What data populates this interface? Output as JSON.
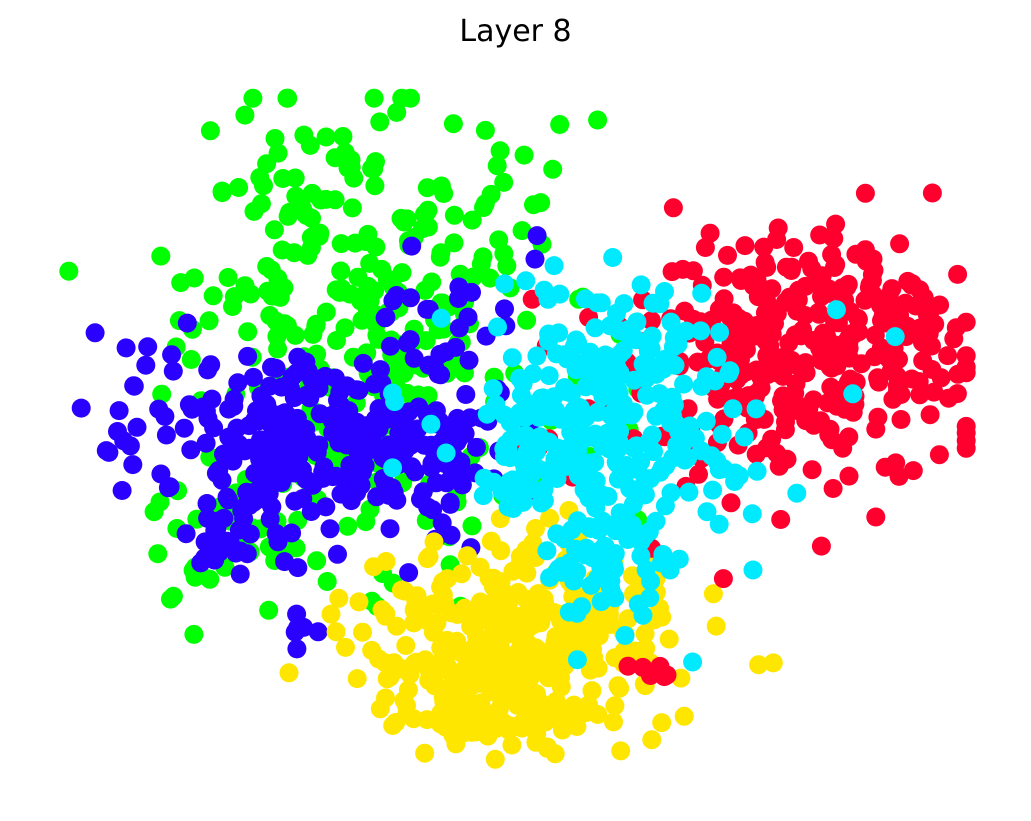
{
  "chart_data": {
    "type": "scatter",
    "title": "Layer 8",
    "xlabel": "",
    "ylabel": "",
    "axes_visible": false,
    "grid": false,
    "legend": "none",
    "xlim": [
      -5.2,
      5.2
    ],
    "ylim": [
      -4.2,
      4.2
    ],
    "series": [
      {
        "color": "#00ff00",
        "clusters": [
          {
            "cx": -1.7,
            "cy": 1.2,
            "sx": 1.05,
            "sy": 1.45,
            "n": 330
          },
          {
            "cx": -3.4,
            "cy": -1.4,
            "sx": 0.45,
            "sy": 0.5,
            "n": 30
          }
        ]
      },
      {
        "color": "#2a00ff",
        "clusters": [
          {
            "cx": -2.55,
            "cy": 0.0,
            "sx": 0.65,
            "sy": 0.5,
            "n": 150
          },
          {
            "cx": -1.2,
            "cy": -0.2,
            "sx": 0.7,
            "sy": 0.45,
            "n": 110
          },
          {
            "cx": -3.2,
            "cy": -1.1,
            "sx": 0.35,
            "sy": 0.3,
            "n": 40
          },
          {
            "cx": -4.2,
            "cy": 0.3,
            "sx": 0.45,
            "sy": 0.55,
            "n": 25
          },
          {
            "cx": -0.8,
            "cy": 1.3,
            "sx": 0.45,
            "sy": 0.5,
            "n": 30
          },
          {
            "cx": -2.5,
            "cy": -2.4,
            "sx": 0.12,
            "sy": 0.12,
            "n": 6
          }
        ]
      },
      {
        "color": "#ffe600",
        "clusters": [
          {
            "cx": -0.6,
            "cy": -2.7,
            "sx": 0.75,
            "sy": 0.55,
            "n": 180
          },
          {
            "cx": 0.6,
            "cy": -2.5,
            "sx": 0.75,
            "sy": 0.55,
            "n": 140
          },
          {
            "cx": -0.3,
            "cy": -3.5,
            "sx": 0.35,
            "sy": 0.25,
            "n": 40
          },
          {
            "cx": 0.2,
            "cy": -1.2,
            "sx": 0.25,
            "sy": 0.35,
            "n": 12
          }
        ]
      },
      {
        "color": "#ff002e",
        "clusters": [
          {
            "cx": 3.4,
            "cy": 1.1,
            "sx": 0.85,
            "sy": 0.75,
            "n": 330
          },
          {
            "cx": 1.6,
            "cy": 0.2,
            "sx": 0.85,
            "sy": 0.8,
            "n": 45
          },
          {
            "cx": 1.6,
            "cy": -2.9,
            "sx": 0.15,
            "sy": 0.1,
            "n": 6
          }
        ]
      },
      {
        "color": "#00eaff",
        "clusters": [
          {
            "cx": 1.0,
            "cy": 0.5,
            "sx": 0.6,
            "sy": 0.75,
            "n": 200
          },
          {
            "cx": 0.1,
            "cy": -0.4,
            "sx": 0.35,
            "sy": 0.4,
            "n": 50
          },
          {
            "cx": 1.1,
            "cy": -1.6,
            "sx": 0.45,
            "sy": 0.45,
            "n": 70
          },
          {
            "cx": 2.0,
            "cy": -0.4,
            "sx": 0.4,
            "sy": 0.6,
            "n": 35
          },
          {
            "cx": 3.8,
            "cy": 0.2,
            "sx": 0.5,
            "sy": 0.6,
            "n": 3
          },
          {
            "cx": -1.3,
            "cy": 0.0,
            "sx": 0.3,
            "sy": 0.3,
            "n": 4
          }
        ]
      }
    ]
  }
}
